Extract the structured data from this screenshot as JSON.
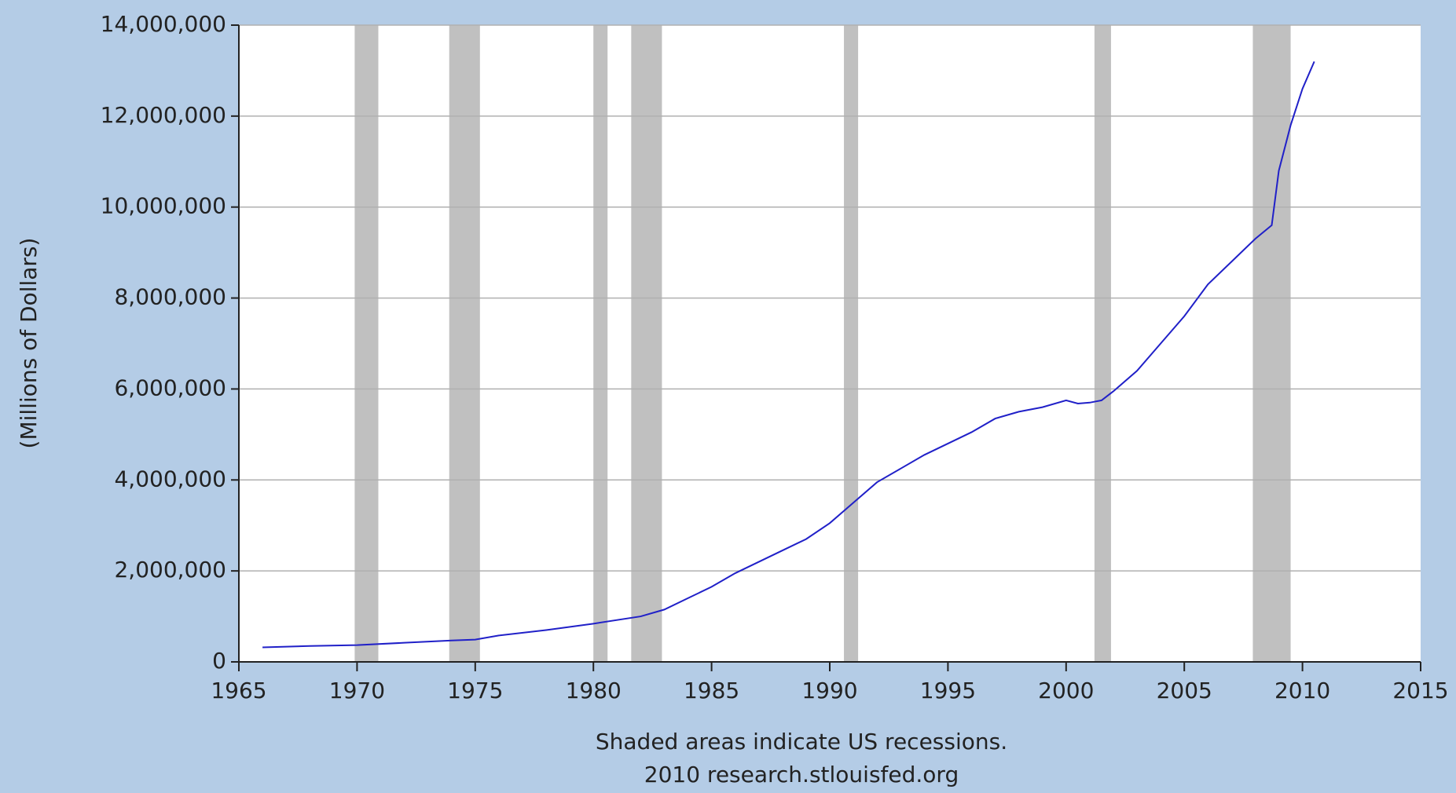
{
  "chart_data": {
    "type": "line",
    "y_label": "(Millions of Dollars)",
    "notes": [
      "Shaded areas indicate US recessions.",
      "2010 research.stlouisfed.org"
    ],
    "x": [
      1966,
      1968,
      1970,
      1972,
      1974,
      1975,
      1976,
      1978,
      1980,
      1982,
      1983,
      1984,
      1985,
      1986,
      1987,
      1988,
      1989,
      1990,
      1991,
      1992,
      1993,
      1994,
      1995,
      1996,
      1997,
      1998,
      1999,
      2000,
      2000.5,
      2001,
      2001.5,
      2002,
      2003,
      2004,
      2005,
      2006,
      2007,
      2008,
      2008.7,
      2009,
      2009.5,
      2010,
      2010.5
    ],
    "series": [
      {
        "color": "#2020c8",
        "values": [
          320000,
          350000,
          370000,
          420000,
          470000,
          490000,
          580000,
          700000,
          840000,
          1000000,
          1150000,
          1400000,
          1650000,
          1950000,
          2200000,
          2450000,
          2700000,
          3050000,
          3500000,
          3950000,
          4250000,
          4550000,
          4800000,
          5050000,
          5350000,
          5500000,
          5600000,
          5750000,
          5680000,
          5700000,
          5750000,
          5950000,
          6400000,
          7000000,
          7600000,
          8300000,
          8800000,
          9300000,
          9600000,
          10800000,
          11800000,
          12600000,
          13200000
        ]
      }
    ],
    "recessions": [
      [
        1969.9,
        1970.9
      ],
      [
        1973.9,
        1975.2
      ],
      [
        1980.0,
        1980.6
      ],
      [
        1981.6,
        1982.9
      ],
      [
        1990.6,
        1991.2
      ],
      [
        2001.2,
        2001.9
      ],
      [
        2007.9,
        2009.5
      ]
    ],
    "recession_color": "#c0c0c0",
    "xlim": [
      1965,
      2015
    ],
    "xticks": [
      1965,
      1970,
      1975,
      1980,
      1985,
      1990,
      1995,
      2000,
      2005,
      2010,
      2015
    ],
    "ylim": [
      0,
      14000000
    ],
    "yticks": [
      0,
      {
        "value": 2000000,
        "label": "2,000,000"
      },
      {
        "value": 4000000,
        "label": "4,000,000"
      },
      {
        "value": 6000000,
        "label": "6,000,000"
      },
      {
        "value": 8000000,
        "label": "8,000,000"
      },
      {
        "value": 10000000,
        "label": "10,000,000"
      },
      {
        "value": 12000000,
        "label": "12,000,000"
      },
      {
        "value": 14000000,
        "label": "14,000,000"
      }
    ],
    "grid": true
  }
}
